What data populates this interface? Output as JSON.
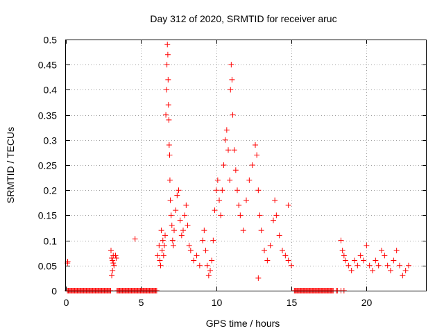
{
  "chart_data": {
    "type": "scatter",
    "title": "Day 312 of 2020, SRMTID for receiver aruc",
    "xlabel": "GPS time / hours",
    "ylabel": "SRMTID / TECUs",
    "xlim": [
      0,
      24
    ],
    "ylim": [
      0,
      0.5
    ],
    "xticks": [
      0,
      5,
      10,
      15,
      20
    ],
    "xtick_labels": [
      "0",
      "5",
      "10",
      "15",
      "20"
    ],
    "yticks": [
      0,
      0.05,
      0.1,
      0.15,
      0.2,
      0.25,
      0.3,
      0.35,
      0.4,
      0.45,
      0.5
    ],
    "ytick_labels": [
      "0",
      "0.05",
      "0.1",
      "0.15",
      "0.2",
      "0.25",
      "0.3",
      "0.35",
      "0.4",
      "0.45",
      "0.5"
    ],
    "grid": true,
    "marker": "+",
    "color": "#ff0000",
    "series": [
      {
        "name": "SRMTID",
        "points": [
          [
            0.1,
            0.055
          ],
          [
            0.12,
            0.058
          ],
          [
            3.0,
            0.08
          ],
          [
            3.05,
            0.065
          ],
          [
            3.1,
            0.06
          ],
          [
            3.15,
            0.055
          ],
          [
            3.2,
            0.05
          ],
          [
            3.1,
            0.04
          ],
          [
            3.05,
            0.03
          ],
          [
            3.15,
            0.07
          ],
          [
            3.3,
            0.07
          ],
          [
            3.35,
            0.065
          ],
          [
            4.6,
            0.103
          ],
          [
            6.1,
            0.07
          ],
          [
            6.2,
            0.09
          ],
          [
            6.25,
            0.06
          ],
          [
            6.3,
            0.05
          ],
          [
            6.35,
            0.12
          ],
          [
            6.4,
            0.08
          ],
          [
            6.45,
            0.1
          ],
          [
            6.5,
            0.07
          ],
          [
            6.55,
            0.09
          ],
          [
            6.6,
            0.11
          ],
          [
            6.65,
            0.35
          ],
          [
            6.7,
            0.4
          ],
          [
            6.72,
            0.45
          ],
          [
            6.75,
            0.49
          ],
          [
            6.78,
            0.47
          ],
          [
            6.8,
            0.42
          ],
          [
            6.82,
            0.37
          ],
          [
            6.85,
            0.34
          ],
          [
            6.87,
            0.29
          ],
          [
            6.9,
            0.27
          ],
          [
            6.92,
            0.22
          ],
          [
            6.95,
            0.18
          ],
          [
            7.0,
            0.15
          ],
          [
            7.05,
            0.13
          ],
          [
            7.1,
            0.1
          ],
          [
            7.15,
            0.09
          ],
          [
            7.2,
            0.12
          ],
          [
            7.3,
            0.16
          ],
          [
            7.4,
            0.19
          ],
          [
            7.5,
            0.2
          ],
          [
            7.6,
            0.14
          ],
          [
            7.7,
            0.11
          ],
          [
            7.8,
            0.12
          ],
          [
            7.9,
            0.15
          ],
          [
            8.0,
            0.17
          ],
          [
            8.1,
            0.13
          ],
          [
            8.2,
            0.09
          ],
          [
            8.3,
            0.08
          ],
          [
            8.5,
            0.06
          ],
          [
            8.7,
            0.07
          ],
          [
            8.9,
            0.05
          ],
          [
            9.1,
            0.1
          ],
          [
            9.2,
            0.12
          ],
          [
            9.3,
            0.08
          ],
          [
            9.4,
            0.05
          ],
          [
            9.5,
            0.03
          ],
          [
            9.6,
            0.04
          ],
          [
            9.7,
            0.06
          ],
          [
            9.8,
            0.1
          ],
          [
            9.9,
            0.16
          ],
          [
            10.0,
            0.2
          ],
          [
            10.1,
            0.22
          ],
          [
            10.2,
            0.18
          ],
          [
            10.3,
            0.15
          ],
          [
            10.4,
            0.2
          ],
          [
            10.5,
            0.25
          ],
          [
            10.6,
            0.3
          ],
          [
            10.7,
            0.32
          ],
          [
            10.8,
            0.28
          ],
          [
            10.9,
            0.22
          ],
          [
            10.95,
            0.4
          ],
          [
            11.0,
            0.45
          ],
          [
            11.05,
            0.42
          ],
          [
            11.1,
            0.35
          ],
          [
            11.2,
            0.28
          ],
          [
            11.3,
            0.24
          ],
          [
            11.4,
            0.2
          ],
          [
            11.5,
            0.17
          ],
          [
            11.6,
            0.15
          ],
          [
            11.8,
            0.12
          ],
          [
            12.0,
            0.18
          ],
          [
            12.2,
            0.22
          ],
          [
            12.4,
            0.25
          ],
          [
            12.6,
            0.29
          ],
          [
            12.7,
            0.27
          ],
          [
            12.8,
            0.2
          ],
          [
            12.9,
            0.15
          ],
          [
            13.0,
            0.12
          ],
          [
            13.2,
            0.08
          ],
          [
            13.4,
            0.06
          ],
          [
            13.6,
            0.09
          ],
          [
            13.8,
            0.14
          ],
          [
            13.9,
            0.18
          ],
          [
            14.0,
            0.15
          ],
          [
            14.2,
            0.11
          ],
          [
            14.4,
            0.08
          ],
          [
            14.6,
            0.07
          ],
          [
            14.8,
            0.06
          ],
          [
            15.0,
            0.05
          ],
          [
            12.8,
            0.025
          ],
          [
            14.8,
            0.17
          ],
          [
            18.3,
            0.1
          ],
          [
            18.4,
            0.08
          ],
          [
            18.5,
            0.07
          ],
          [
            18.6,
            0.06
          ],
          [
            18.8,
            0.05
          ],
          [
            19.0,
            0.04
          ],
          [
            19.2,
            0.06
          ],
          [
            19.4,
            0.05
          ],
          [
            19.6,
            0.07
          ],
          [
            19.8,
            0.06
          ],
          [
            20.0,
            0.09
          ],
          [
            20.2,
            0.05
          ],
          [
            20.4,
            0.04
          ],
          [
            20.6,
            0.06
          ],
          [
            20.8,
            0.05
          ],
          [
            21.0,
            0.08
          ],
          [
            21.2,
            0.07
          ],
          [
            21.4,
            0.05
          ],
          [
            21.6,
            0.04
          ],
          [
            21.8,
            0.06
          ],
          [
            22.0,
            0.08
          ],
          [
            22.2,
            0.05
          ],
          [
            22.4,
            0.03
          ],
          [
            22.6,
            0.04
          ],
          [
            22.8,
            0.05
          ]
        ],
        "zero_runs": [
          [
            0.1,
            3.0
          ],
          [
            3.4,
            6.05
          ],
          [
            15.2,
            17.8
          ],
          [
            18.0,
            18.1
          ],
          [
            18.3,
            18.35
          ],
          [
            18.5,
            18.55
          ]
        ]
      }
    ]
  }
}
